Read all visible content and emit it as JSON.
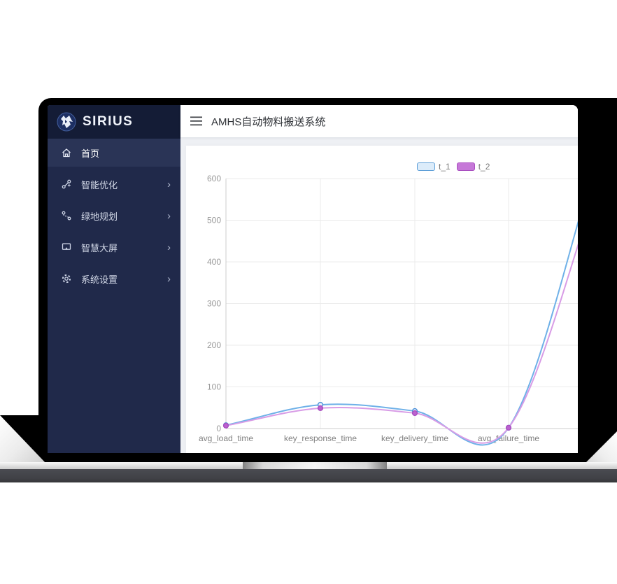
{
  "sidebar": {
    "logo_text": "SIRIUS",
    "chevron": "›",
    "items": [
      {
        "label": "首页",
        "icon": "home-icon",
        "active": true,
        "has_submenu": false
      },
      {
        "label": "智能优化",
        "icon": "optimize-icon",
        "active": false,
        "has_submenu": true
      },
      {
        "label": "绿地规划",
        "icon": "planning-icon",
        "active": false,
        "has_submenu": true
      },
      {
        "label": "智慧大屏",
        "icon": "screen-icon",
        "active": false,
        "has_submenu": true
      },
      {
        "label": "系统设置",
        "icon": "settings-icon",
        "active": false,
        "has_submenu": true
      }
    ]
  },
  "header": {
    "title": "AMHS自动物料搬送系统",
    "menu_icon": "hamburger-icon"
  },
  "chart_data": {
    "type": "line",
    "smooth": true,
    "grid": true,
    "legend_position": "top",
    "categories": [
      "avg_load_time",
      "key_response_time",
      "key_delivery_time",
      "avg_failure_time"
    ],
    "series": [
      {
        "name": "t_1",
        "values": [
          8,
          57,
          42,
          2
        ],
        "exit_value_at_right_clip": 491,
        "line_color": "#6fb1e8",
        "marker_fill": "#e8f2fc",
        "marker_stroke": "#4a90d9",
        "legend_fill": "#dcecfa",
        "legend_stroke": "#5e9fd8"
      },
      {
        "name": "t_2",
        "values": [
          7,
          49,
          37,
          2
        ],
        "exit_value_at_right_clip": 437,
        "line_color": "#d89ce6",
        "marker_fill": "#bb62cf",
        "marker_stroke": "#a94ec0",
        "legend_fill": "#c678d8",
        "legend_stroke": "#a94ec0"
      }
    ],
    "ylim": [
      0,
      600
    ],
    "ytick_step": 100,
    "xlabel": "",
    "ylabel": ""
  },
  "colors": {
    "sidebar_bg": "#20294a",
    "sidebar_logo_bg": "#141c36",
    "sidebar_active_bg": "#2a3456",
    "content_bg": "#eef0f4",
    "axis_line": "#cccccc",
    "grid_line": "#ebebeb",
    "tick_label": "#999999",
    "x_label": "#808080"
  }
}
